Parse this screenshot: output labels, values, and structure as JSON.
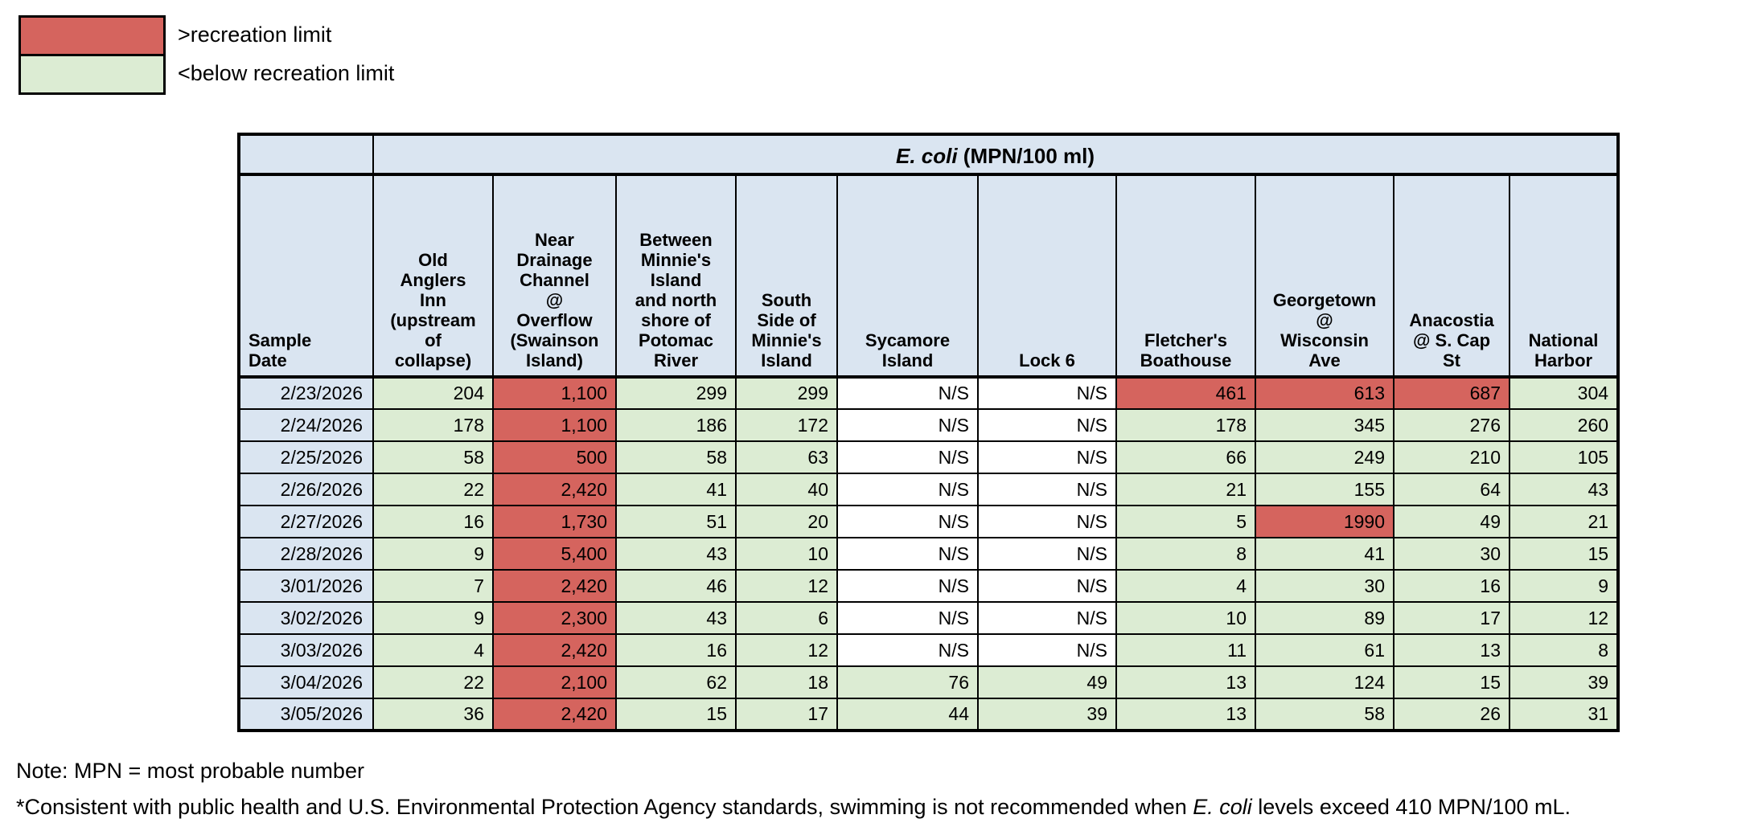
{
  "legend": {
    "items": [
      {
        "id": "above",
        "label": ">recreation limit"
      },
      {
        "id": "below",
        "label": "<below recreation limit"
      }
    ]
  },
  "table": {
    "title_italic": "E. coli",
    "title_rest": " (MPN/100 ml)",
    "row_header_label": "Sample\nDate",
    "site_columns": [
      "Old\nAnglers\nInn\n(upstream\nof\ncollapse)",
      "Near\nDrainage\nChannel\n@\nOverflow\n(Swainson\nIsland)",
      "Between\nMinnie's\nIsland\nand north\nshore of\nPotomac\nRiver",
      "South\nSide of\nMinnie's\nIsland",
      "Sycamore\nIsland",
      "Lock 6",
      "Fletcher's\nBoathouse",
      "Georgetown\n@\nWisconsin\nAve",
      "Anacostia\n@ S. Cap\nSt",
      "National\nHarbor"
    ],
    "not_sampled_label": "N/S",
    "recreation_limit_mpn": 410,
    "rows": [
      {
        "date": "2/23/2026",
        "values": [
          "204",
          "1,100",
          "299",
          "299",
          "N/S",
          "N/S",
          "461",
          "613",
          "687",
          "304"
        ]
      },
      {
        "date": "2/24/2026",
        "values": [
          "178",
          "1,100",
          "186",
          "172",
          "N/S",
          "N/S",
          "178",
          "345",
          "276",
          "260"
        ]
      },
      {
        "date": "2/25/2026",
        "values": [
          "58",
          "500",
          "58",
          "63",
          "N/S",
          "N/S",
          "66",
          "249",
          "210",
          "105"
        ]
      },
      {
        "date": "2/26/2026",
        "values": [
          "22",
          "2,420",
          "41",
          "40",
          "N/S",
          "N/S",
          "21",
          "155",
          "64",
          "43"
        ]
      },
      {
        "date": "2/27/2026",
        "values": [
          "16",
          "1,730",
          "51",
          "20",
          "N/S",
          "N/S",
          "5",
          "1990",
          "49",
          "21"
        ]
      },
      {
        "date": "2/28/2026",
        "values": [
          "9",
          "5,400",
          "43",
          "10",
          "N/S",
          "N/S",
          "8",
          "41",
          "30",
          "15"
        ]
      },
      {
        "date": "3/01/2026",
        "values": [
          "7",
          "2,420",
          "46",
          "12",
          "N/S",
          "N/S",
          "4",
          "30",
          "16",
          "9"
        ]
      },
      {
        "date": "3/02/2026",
        "values": [
          "9",
          "2,300",
          "43",
          "6",
          "N/S",
          "N/S",
          "10",
          "89",
          "17",
          "12"
        ]
      },
      {
        "date": "3/03/2026",
        "values": [
          "4",
          "2,420",
          "16",
          "12",
          "N/S",
          "N/S",
          "11",
          "61",
          "13",
          "8"
        ]
      },
      {
        "date": "3/04/2026",
        "values": [
          "22",
          "2,100",
          "62",
          "18",
          "76",
          "49",
          "13",
          "124",
          "15",
          "39"
        ]
      },
      {
        "date": "3/05/2026",
        "values": [
          "36",
          "2,420",
          "15",
          "17",
          "44",
          "39",
          "13",
          "58",
          "26",
          "31"
        ]
      }
    ]
  },
  "notes": {
    "line1": "Note: MPN = most probable number",
    "line2_prefix": "*Consistent with public health and U.S. Environmental Protection Agency standards, swimming is not recommended when ",
    "line2_italic": "E. coli",
    "line2_suffix": " levels exceed 410 MPN/100 mL."
  },
  "colors": {
    "above_limit": "#d5645e",
    "below_limit": "#dcecd3",
    "header_fill": "#dae5f1",
    "not_sampled_fill": "#ffffff",
    "border": "#000000"
  }
}
